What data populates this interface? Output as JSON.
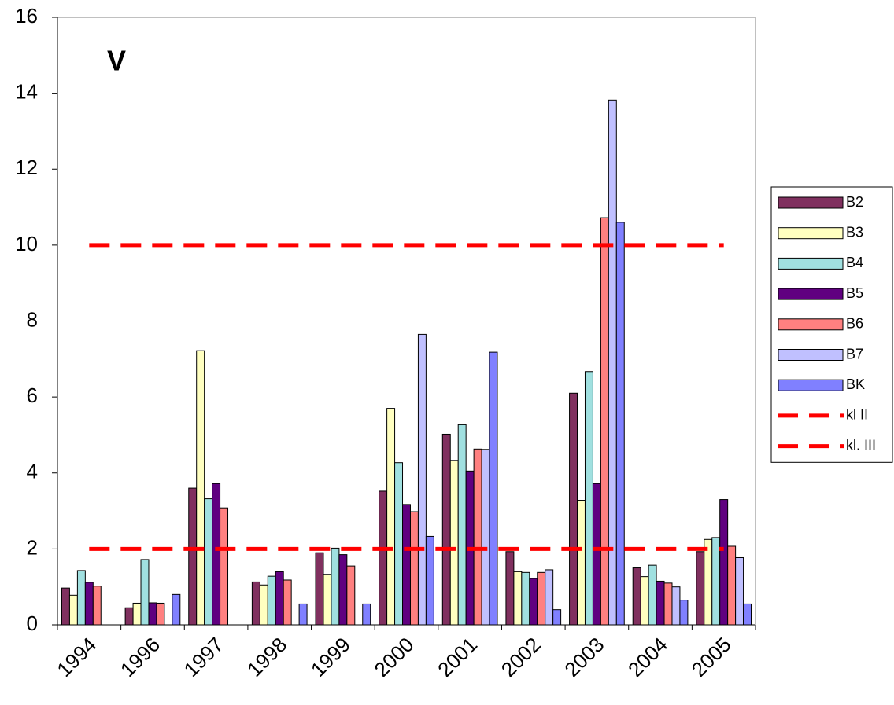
{
  "chart_data": {
    "type": "bar",
    "title": "V",
    "categories": [
      "1994",
      "1996",
      "1997",
      "1998",
      "1999",
      "2000",
      "2001",
      "2002",
      "2003",
      "2004",
      "2005"
    ],
    "series": [
      {
        "name": "B2",
        "color": "#80305f",
        "values": [
          0.97,
          0.45,
          3.6,
          1.13,
          1.9,
          3.52,
          5.02,
          1.93,
          6.1,
          1.5,
          1.93
        ]
      },
      {
        "name": "B3",
        "color": "#ffffc0",
        "values": [
          0.78,
          0.57,
          7.22,
          1.05,
          1.33,
          5.7,
          4.33,
          1.4,
          3.28,
          1.27,
          2.25
        ]
      },
      {
        "name": "B4",
        "color": "#a0e0e0",
        "values": [
          1.43,
          1.72,
          3.32,
          1.28,
          2.02,
          4.27,
          5.27,
          1.38,
          6.67,
          1.57,
          2.3
        ]
      },
      {
        "name": "B5",
        "color": "#600080",
        "values": [
          1.12,
          0.58,
          3.72,
          1.4,
          1.85,
          3.17,
          4.05,
          1.22,
          3.72,
          1.15,
          3.3
        ]
      },
      {
        "name": "B6",
        "color": "#ff8080",
        "values": [
          1.02,
          0.57,
          3.08,
          1.18,
          1.55,
          2.98,
          4.63,
          1.38,
          10.72,
          1.1,
          2.07
        ]
      },
      {
        "name": "B7",
        "color": "#c0c0ff",
        "values": [
          null,
          null,
          null,
          null,
          null,
          7.65,
          4.62,
          1.45,
          13.82,
          1.0,
          1.77
        ]
      },
      {
        "name": "BK",
        "color": "#8080ff",
        "values": [
          null,
          0.8,
          null,
          0.55,
          0.55,
          2.33,
          7.18,
          0.4,
          10.6,
          0.65,
          0.55
        ]
      },
      {
        "name": "kl II",
        "type": "line",
        "color": "#ff0000",
        "dashed": true,
        "values": [
          2,
          2,
          2,
          2,
          2,
          2,
          2,
          2,
          2,
          2,
          2
        ]
      },
      {
        "name": "kl. III",
        "type": "line",
        "color": "#ff0000",
        "dashed": true,
        "values": [
          10,
          10,
          10,
          10,
          10,
          10,
          10,
          10,
          10,
          10,
          10
        ]
      }
    ],
    "ylim": [
      0,
      16
    ],
    "yticks": [
      0,
      2,
      4,
      6,
      8,
      10,
      12,
      14,
      16
    ],
    "grid": false,
    "legend": "right"
  }
}
